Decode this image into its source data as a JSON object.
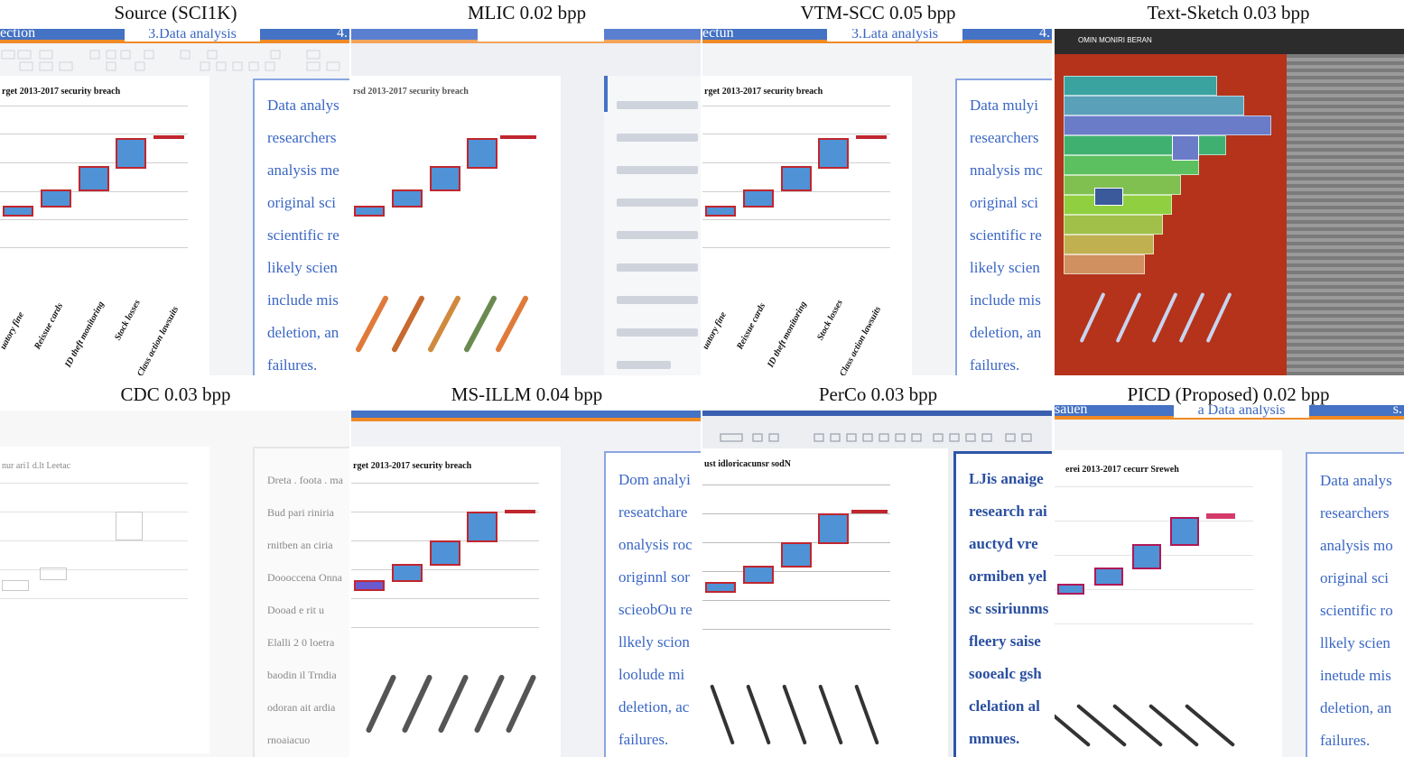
{
  "captions": [
    "Source (SCI1K)",
    "MLIC 0.02 bpp",
    "VTM-SCC 0.05 bpp",
    "Text-Sketch 0.03 bpp",
    "CDC 0.03 bpp",
    "MS-ILLM 0.04 bpp",
    "PerCo 0.03 bpp",
    "PICD (Proposed) 0.02 bpp"
  ],
  "source_slide": {
    "header_left": "ection",
    "header_center": "3.Data analysis",
    "header_right": "4.",
    "chart_title": "rget 2013-2017 security breach",
    "text_lines": [
      "Data analys",
      "researchers",
      "analysis me",
      "original sci",
      "scientific re",
      "likely scien",
      "include mis",
      "deletion, an",
      "failures."
    ],
    "x_labels": [
      "uatory fine",
      "Reissue cards",
      "ID theft monitoring",
      "Stock losses",
      "Class action lawsuits"
    ]
  },
  "vtm_slide": {
    "header_left": "ectun",
    "header_center": "3.Lata analysis",
    "header_right": "4.",
    "chart_title": "rget 2013-2017 security breach",
    "text_lines": [
      "Data mulyi",
      "researchers",
      "nnalysis mc",
      "original sci",
      "scientific re",
      "likely scien",
      "include mis",
      "deletion, an",
      "failures."
    ],
    "x_labels": [
      "uatory fine",
      "Reissue cards",
      "ID theft monitoring",
      "Stock losses",
      "Class action lawsuits"
    ]
  },
  "mlic_slide": {
    "chart_title": "rsd 2013-2017 security breach"
  },
  "cdc_slide": {
    "chart_title": "nur ari1 d.lt Leetac",
    "text_lines": [
      "Dreta . foota . ma",
      "Bud pari riniria",
      "rnitben an ciria",
      "Doooccena Onna",
      "Dooad e rit  u",
      "Elalli 2 0 loetra",
      "baodin il Trndia",
      "odoran ait ardia",
      "rnoaiacuo"
    ]
  },
  "msillm_slide": {
    "chart_title": "rget 2013-2017 security breach",
    "text_lines": [
      "Dom analyi",
      "reseatchare",
      "onalysis roc",
      "originnl sor",
      "scieobOu re",
      "llkely scion",
      "loolude mi",
      "deletion, ac",
      "failures."
    ]
  },
  "perco_slide": {
    "chart_title": "ust idloricacunsr sodN",
    "text_lines": [
      "LJis anaige",
      "research rai",
      "auctyd vre",
      "ormiben yel",
      "sc ssiriunms",
      "fleery saise",
      "sooealc gsh",
      "clelation al",
      "mmues."
    ]
  },
  "picd_slide": {
    "header_left": "sauen",
    "header_center": "a Data analysis",
    "header_right": "s.",
    "chart_title": "erei 2013-2017 cecurr Sreweh",
    "text_lines": [
      "Data analys",
      "researchers",
      "analysis mo",
      "original sci",
      "scientific ro",
      "llkely scien",
      "inetude mis",
      "deletion, an",
      "failures."
    ]
  },
  "sketch": {
    "title_text": "OMIN MONIRI BERAN"
  },
  "colors": {
    "header_blue": "#4472c4",
    "accent_orange": "#f08a24",
    "text_blue": "#3a66c4",
    "bar_fill": "#4f92d6",
    "bar_edge": "#c0262e"
  }
}
